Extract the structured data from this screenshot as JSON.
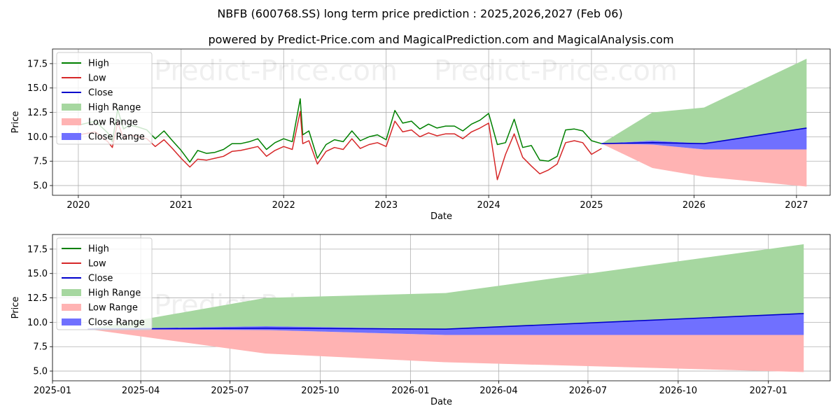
{
  "title": "NBFB (600768.SS) long term price prediction : 2025,2026,2027 (Feb 06)",
  "subtitle": "powered by Predict-Price.com and MagicalPrediction.com and MagicalAnalysis.com",
  "watermark": "Predict-Price.com",
  "colors": {
    "high": "#008000",
    "low": "#d62728",
    "close": "#0000cc",
    "high_range": "#a6d7a0",
    "low_range": "#ffb3b3",
    "close_range": "#7070ff"
  },
  "chart_data": [
    {
      "type": "line",
      "xlabel": "Date",
      "ylabel": "Price",
      "xlim": [
        "2019-10-01",
        "2027-05-01"
      ],
      "ylim": [
        4.0,
        19.0
      ],
      "x_ticks": [
        "2020-01-01",
        "2021-01-01",
        "2022-01-01",
        "2023-01-01",
        "2024-01-01",
        "2025-01-01",
        "2026-01-01",
        "2027-01-01"
      ],
      "x_tick_labels": [
        "2020",
        "2021",
        "2022",
        "2023",
        "2024",
        "2025",
        "2026",
        "2027"
      ],
      "y_ticks": [
        5.0,
        7.5,
        10.0,
        12.5,
        15.0,
        17.5
      ],
      "y_tick_labels": [
        "5.0",
        "7.5",
        "10.0",
        "12.5",
        "15.0",
        "17.5"
      ],
      "grid": true,
      "legend": {
        "position": "top-left",
        "entries": [
          "High",
          "Low",
          "Close",
          "High Range",
          "Low Range",
          "Close Range"
        ]
      },
      "history": {
        "x": [
          "2020-01-02",
          "2020-03-01",
          "2020-04-15",
          "2020-05-01",
          "2020-05-20",
          "2020-06-10",
          "2020-07-01",
          "2020-08-01",
          "2020-09-01",
          "2020-10-01",
          "2020-11-01",
          "2020-12-01",
          "2021-01-01",
          "2021-02-01",
          "2021-03-01",
          "2021-04-01",
          "2021-05-01",
          "2021-06-01",
          "2021-07-01",
          "2021-08-01",
          "2021-09-01",
          "2021-10-01",
          "2021-11-01",
          "2021-12-01",
          "2022-01-01",
          "2022-02-01",
          "2022-03-01",
          "2022-03-10",
          "2022-04-01",
          "2022-05-01",
          "2022-06-01",
          "2022-07-01",
          "2022-08-01",
          "2022-09-01",
          "2022-10-01",
          "2022-11-01",
          "2022-12-01",
          "2023-01-01",
          "2023-02-01",
          "2023-03-01",
          "2023-04-01",
          "2023-05-01",
          "2023-06-01",
          "2023-07-01",
          "2023-08-01",
          "2023-09-01",
          "2023-10-01",
          "2023-11-01",
          "2023-12-01",
          "2024-01-01",
          "2024-02-01",
          "2024-03-01",
          "2024-04-01",
          "2024-05-01",
          "2024-06-01",
          "2024-07-01",
          "2024-08-01",
          "2024-09-01",
          "2024-10-01",
          "2024-11-01",
          "2024-12-01",
          "2025-01-01",
          "2025-02-06"
        ],
        "high": [
          11.2,
          11.6,
          10.4,
          9.5,
          12.8,
          10.8,
          11.2,
          11.0,
          10.7,
          9.8,
          10.6,
          9.6,
          8.6,
          7.4,
          8.6,
          8.3,
          8.4,
          8.7,
          9.3,
          9.3,
          9.5,
          9.8,
          8.7,
          9.4,
          9.8,
          9.5,
          13.9,
          10.2,
          10.6,
          7.8,
          9.2,
          9.7,
          9.5,
          10.6,
          9.6,
          10.0,
          10.2,
          9.7,
          12.7,
          11.4,
          11.6,
          10.8,
          11.3,
          10.9,
          11.1,
          11.1,
          10.6,
          11.3,
          11.7,
          12.4,
          9.2,
          9.4,
          11.8,
          8.9,
          9.1,
          7.6,
          7.5,
          8.0,
          10.7,
          10.8,
          10.6,
          9.6,
          9.3
        ],
        "low": [
          10.2,
          10.5,
          9.5,
          8.9,
          11.5,
          9.8,
          10.2,
          10.0,
          9.8,
          9.0,
          9.7,
          8.8,
          7.8,
          6.9,
          7.7,
          7.6,
          7.8,
          8.0,
          8.5,
          8.6,
          8.8,
          9.0,
          8.0,
          8.6,
          9.0,
          8.7,
          12.6,
          9.3,
          9.6,
          7.2,
          8.5,
          8.9,
          8.7,
          9.8,
          8.8,
          9.2,
          9.4,
          9.0,
          11.6,
          10.5,
          10.7,
          10.0,
          10.4,
          10.1,
          10.3,
          10.3,
          9.8,
          10.5,
          10.9,
          11.4,
          5.6,
          8.2,
          10.3,
          7.9,
          7.0,
          6.2,
          6.6,
          7.2,
          9.4,
          9.6,
          9.4,
          8.2,
          8.8
        ]
      },
      "forecast": {
        "x": [
          "2025-02-06",
          "2025-08-06",
          "2026-02-06",
          "2027-02-06"
        ],
        "close": [
          9.3,
          9.4,
          9.3,
          10.9
        ],
        "high_range_upper": [
          9.3,
          12.5,
          13.0,
          18.0
        ],
        "low_range_lower": [
          9.3,
          6.8,
          5.9,
          4.9
        ],
        "close_range_upper": [
          9.3,
          9.6,
          9.3,
          10.9
        ],
        "close_range_lower": [
          9.3,
          9.2,
          8.7,
          8.7
        ]
      }
    },
    {
      "type": "line",
      "xlabel": "Date",
      "ylabel": "Price",
      "xlim": [
        "2025-01-01",
        "2027-03-05"
      ],
      "ylim": [
        4.0,
        19.0
      ],
      "x_ticks": [
        "2025-01-01",
        "2025-04-01",
        "2025-07-01",
        "2025-10-01",
        "2026-01-01",
        "2026-04-01",
        "2026-07-01",
        "2026-10-01",
        "2027-01-01"
      ],
      "x_tick_labels": [
        "2025-01",
        "2025-04",
        "2025-07",
        "2025-10",
        "2026-01",
        "2026-04",
        "2026-07",
        "2026-10",
        "2027-01"
      ],
      "y_ticks": [
        5.0,
        7.5,
        10.0,
        12.5,
        15.0,
        17.5
      ],
      "y_tick_labels": [
        "5.0",
        "7.5",
        "10.0",
        "12.5",
        "15.0",
        "17.5"
      ],
      "grid": true,
      "legend": {
        "position": "top-left",
        "entries": [
          "High",
          "Low",
          "Close",
          "High Range",
          "Low Range",
          "Close Range"
        ]
      },
      "forecast": {
        "x": [
          "2025-02-06",
          "2025-08-06",
          "2026-02-06",
          "2027-02-06"
        ],
        "close": [
          9.3,
          9.4,
          9.3,
          10.9
        ],
        "high_range_upper": [
          9.3,
          12.5,
          13.0,
          18.0
        ],
        "low_range_lower": [
          9.3,
          6.8,
          5.9,
          4.9
        ],
        "close_range_upper": [
          9.3,
          9.6,
          9.3,
          10.9
        ],
        "close_range_lower": [
          9.3,
          9.2,
          8.7,
          8.7
        ]
      }
    }
  ]
}
